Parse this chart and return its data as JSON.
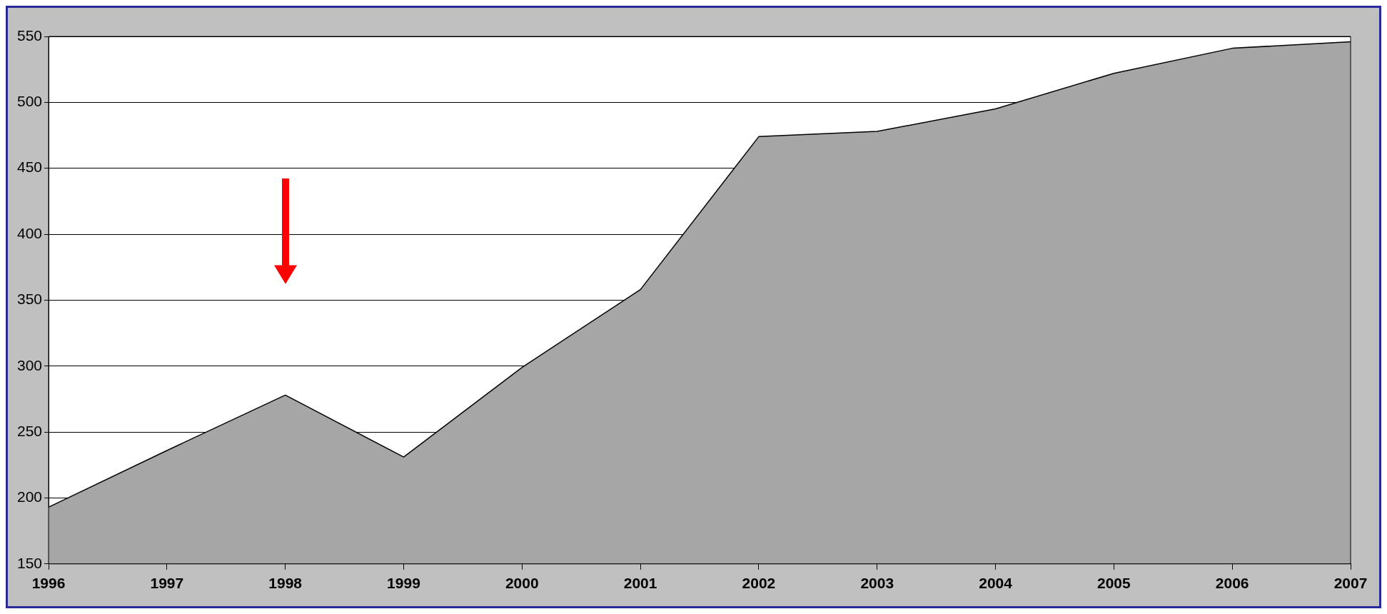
{
  "chart_data": {
    "type": "area",
    "categories": [
      "1996",
      "1997",
      "1998",
      "1999",
      "2000",
      "2001",
      "2002",
      "2003",
      "2004",
      "2005",
      "2006",
      "2007"
    ],
    "series": [
      {
        "color": "#a6a6a6",
        "values": [
          193,
          236,
          278,
          231,
          299,
          358,
          474,
          478,
          495,
          522,
          541,
          546
        ]
      }
    ],
    "ylim": [
      150,
      550
    ],
    "yticks": [
      150,
      200,
      250,
      300,
      350,
      400,
      450,
      500,
      550
    ],
    "grid": "y",
    "legend": false,
    "marker": "none",
    "line_style": "solid"
  }
}
